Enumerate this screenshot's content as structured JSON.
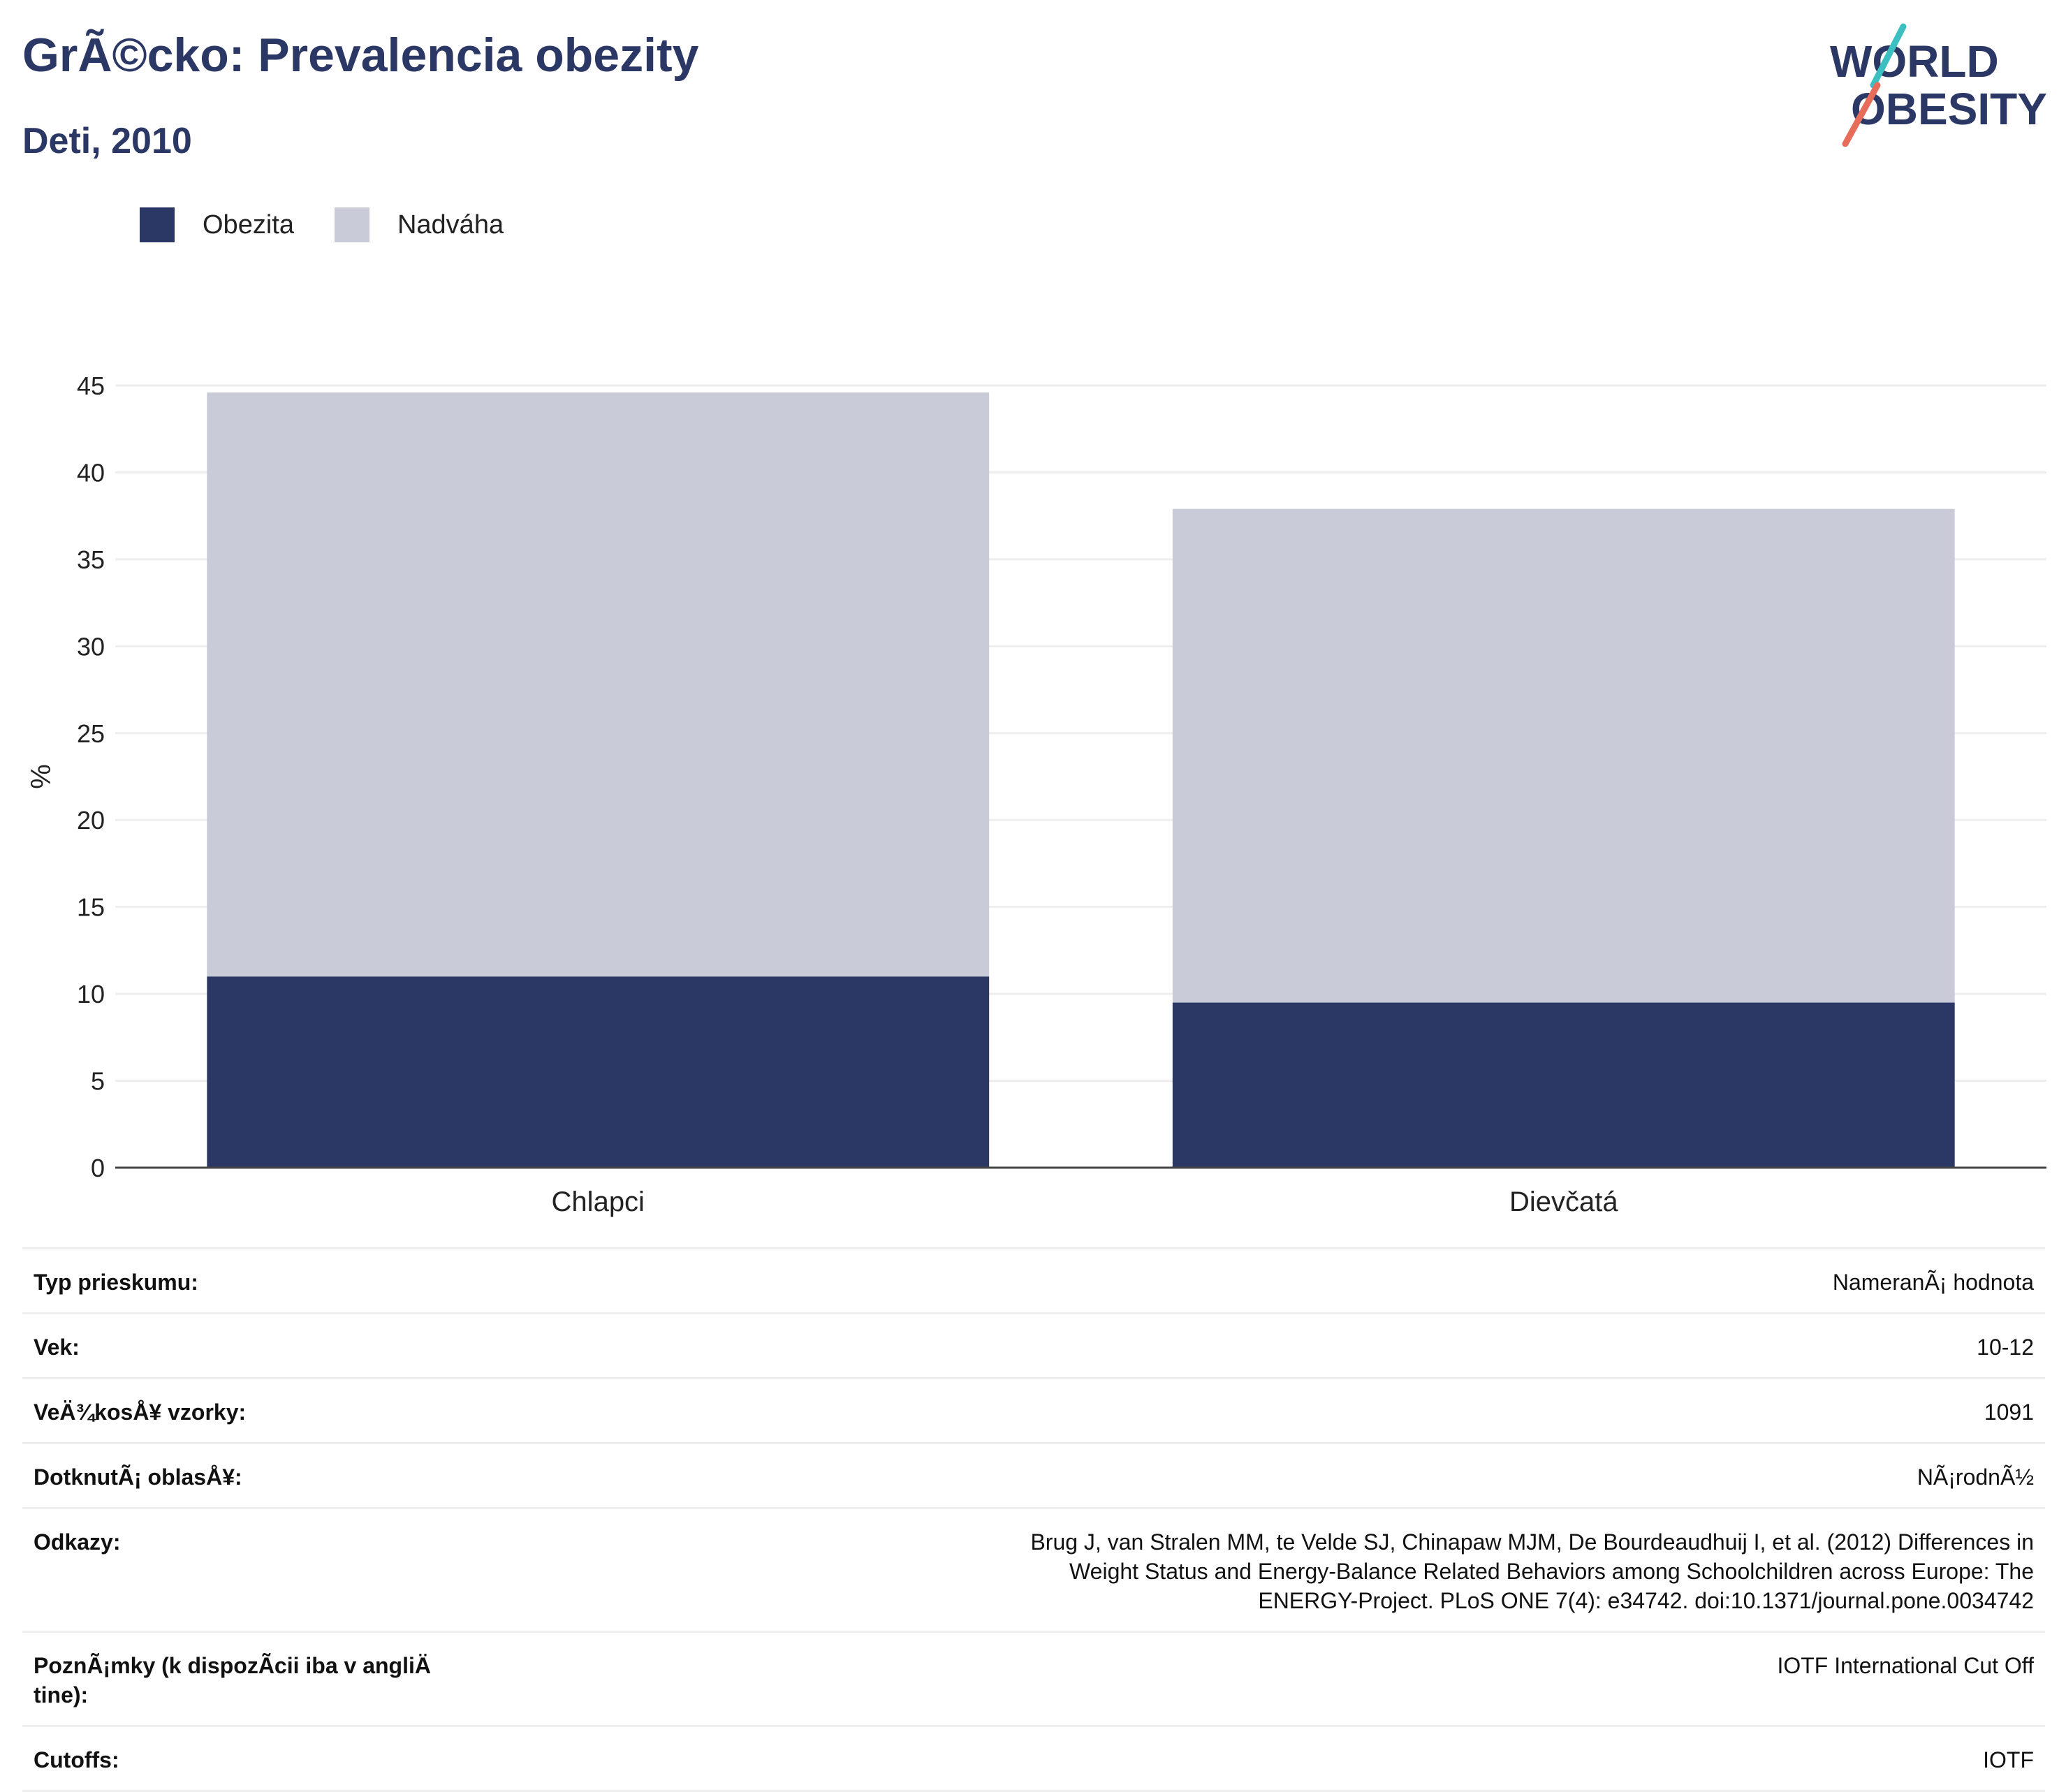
{
  "header": {
    "title": "GrÃ©cko: Prevalencia obezity",
    "subtitle": "Deti, 2010"
  },
  "logo": {
    "line1": "WORLD",
    "line2": "OBESITY"
  },
  "colors": {
    "obesity": "#2b3764",
    "overweight": "#c9ccd8",
    "text": "#2b3764",
    "grid": "#eeeeee",
    "axis": "#444444",
    "logo_teal": "#3bbfc1",
    "logo_coral": "#e86c5a"
  },
  "chart_data": {
    "type": "bar",
    "stacked": true,
    "categories": [
      "Chlapci",
      "Dievčatá"
    ],
    "series": [
      {
        "name": "Obezita",
        "values": [
          11.0,
          9.5
        ]
      },
      {
        "name": "Nadváha",
        "values": [
          33.6,
          28.4
        ]
      }
    ],
    "ylabel": "%",
    "ylim": [
      0,
      45
    ],
    "yticks": [
      0,
      5,
      10,
      15,
      20,
      25,
      30,
      35,
      40,
      45
    ],
    "grid": true,
    "legend": "top-left"
  },
  "details": [
    {
      "label": "Typ prieskumu:",
      "value": "NameranÃ¡ hodnota"
    },
    {
      "label": "Vek:",
      "value": "10-12"
    },
    {
      "label": "VeÄ¾kosÅ¥ vzorky:",
      "value": "1091"
    },
    {
      "label": "DotknutÃ¡ oblasÅ¥:",
      "value": "NÃ¡rodnÃ½"
    },
    {
      "label": "Odkazy:",
      "value": "Brug J, van Stralen MM, te Velde SJ, Chinapaw MJM, De Bourdeaudhuij I, et al. (2012) Differences in Weight Status and Energy-Balance Related Behaviors among Schoolchildren across Europe: The ENERGY-Project. PLoS ONE 7(4): e34742. doi:10.1371/journal.pone.0034742"
    },
    {
      "label": "PoznÃ¡mky (k dispozÃcii iba v angliÄ tine):",
      "value": "IOTF International Cut Off"
    },
    {
      "label": "Cutoffs:",
      "value": "IOTF"
    }
  ]
}
